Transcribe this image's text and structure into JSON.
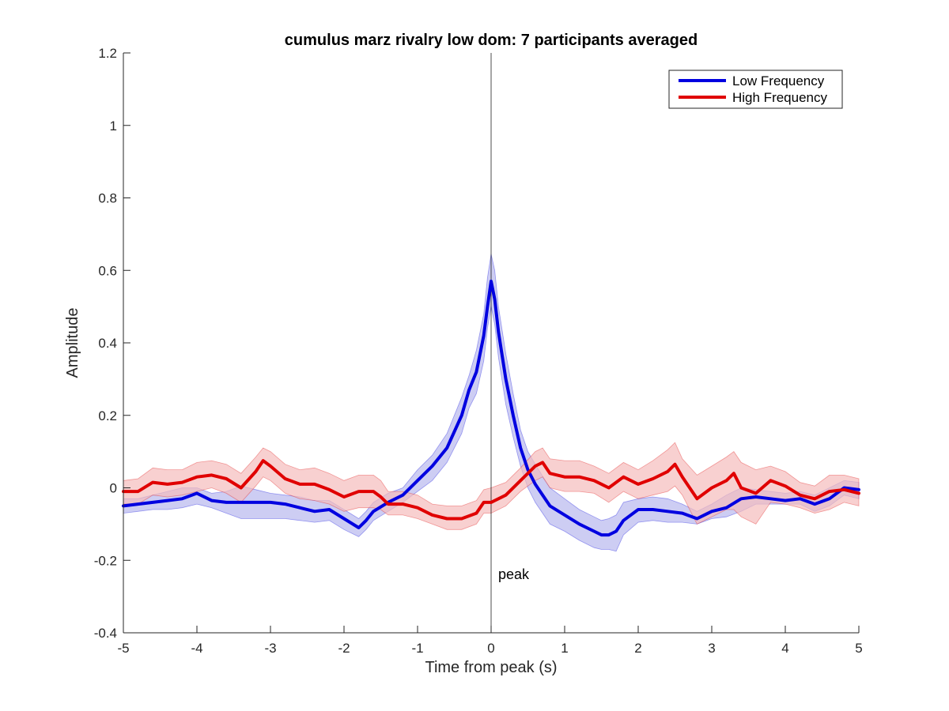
{
  "chart_data": {
    "type": "line",
    "title": "cumulus marz rivalry low dom: 7 participants averaged",
    "xlabel": "Time from peak (s)",
    "ylabel": "Amplitude",
    "xlim": [
      -5,
      5
    ],
    "ylim": [
      -0.4,
      1.2
    ],
    "xticks": [
      -5,
      -4,
      -3,
      -2,
      -1,
      0,
      1,
      2,
      3,
      4,
      5
    ],
    "yticks": [
      -0.4,
      -0.2,
      0,
      0.2,
      0.4,
      0.6,
      0.8,
      1,
      1.2
    ],
    "grid": false,
    "legend_position": "top-right",
    "vline": {
      "x": 0,
      "label": "peak"
    },
    "series": [
      {
        "name": "Low Frequency",
        "color": "#0000e0",
        "band_color": "#b8b8ee",
        "x": [
          -5,
          -4.8,
          -4.6,
          -4.4,
          -4.2,
          -4.0,
          -3.8,
          -3.6,
          -3.4,
          -3.2,
          -3.0,
          -2.8,
          -2.6,
          -2.4,
          -2.2,
          -2.0,
          -1.8,
          -1.7,
          -1.6,
          -1.4,
          -1.2,
          -1.0,
          -0.8,
          -0.6,
          -0.4,
          -0.3,
          -0.2,
          -0.1,
          -0.05,
          0,
          0.05,
          0.1,
          0.2,
          0.3,
          0.4,
          0.5,
          0.6,
          0.8,
          1.0,
          1.2,
          1.4,
          1.5,
          1.6,
          1.7,
          1.8,
          2.0,
          2.2,
          2.4,
          2.6,
          2.8,
          3.0,
          3.2,
          3.4,
          3.6,
          3.8,
          4.0,
          4.2,
          4.4,
          4.6,
          4.8,
          5.0
        ],
        "y": [
          -0.05,
          -0.045,
          -0.04,
          -0.035,
          -0.03,
          -0.015,
          -0.035,
          -0.04,
          -0.04,
          -0.04,
          -0.04,
          -0.045,
          -0.055,
          -0.065,
          -0.06,
          -0.085,
          -0.11,
          -0.09,
          -0.065,
          -0.04,
          -0.02,
          0.02,
          0.06,
          0.11,
          0.2,
          0.27,
          0.32,
          0.42,
          0.5,
          0.57,
          0.52,
          0.43,
          0.3,
          0.2,
          0.11,
          0.05,
          0.01,
          -0.05,
          -0.075,
          -0.1,
          -0.12,
          -0.13,
          -0.13,
          -0.12,
          -0.09,
          -0.06,
          -0.06,
          -0.065,
          -0.07,
          -0.085,
          -0.065,
          -0.055,
          -0.03,
          -0.025,
          -0.03,
          -0.035,
          -0.03,
          -0.045,
          -0.03,
          0,
          -0.005
        ],
        "lower": [
          -0.07,
          -0.065,
          -0.06,
          -0.06,
          -0.055,
          -0.045,
          -0.055,
          -0.07,
          -0.085,
          -0.085,
          -0.085,
          -0.085,
          -0.09,
          -0.095,
          -0.09,
          -0.115,
          -0.135,
          -0.115,
          -0.09,
          -0.065,
          -0.04,
          -0.01,
          0.02,
          0.07,
          0.15,
          0.22,
          0.26,
          0.35,
          0.44,
          0.5,
          0.45,
          0.36,
          0.23,
          0.14,
          0.06,
          0.0,
          -0.04,
          -0.1,
          -0.12,
          -0.145,
          -0.165,
          -0.17,
          -0.17,
          -0.175,
          -0.13,
          -0.095,
          -0.09,
          -0.095,
          -0.095,
          -0.1,
          -0.085,
          -0.08,
          -0.065,
          -0.045,
          -0.045,
          -0.045,
          -0.045,
          -0.065,
          -0.05,
          -0.02,
          -0.03
        ],
        "upper": [
          -0.03,
          -0.03,
          -0.02,
          -0.01,
          0.0,
          0.0,
          -0.015,
          -0.01,
          0.005,
          -0.005,
          -0.015,
          -0.02,
          -0.025,
          -0.035,
          -0.035,
          -0.06,
          -0.085,
          -0.065,
          -0.04,
          -0.015,
          0.0,
          0.05,
          0.09,
          0.15,
          0.25,
          0.31,
          0.38,
          0.48,
          0.58,
          0.645,
          0.6,
          0.5,
          0.37,
          0.26,
          0.16,
          0.1,
          0.065,
          0.0,
          -0.03,
          -0.06,
          -0.08,
          -0.09,
          -0.085,
          -0.075,
          -0.04,
          -0.03,
          -0.025,
          -0.03,
          -0.045,
          -0.065,
          -0.045,
          -0.02,
          0.0,
          -0.005,
          -0.01,
          -0.015,
          -0.01,
          -0.02,
          0.0,
          0.02,
          0.015
        ]
      },
      {
        "name": "High Frequency",
        "color": "#e00000",
        "band_color": "#f5bcbc",
        "x": [
          -5,
          -4.8,
          -4.6,
          -4.4,
          -4.2,
          -4.0,
          -3.8,
          -3.6,
          -3.4,
          -3.2,
          -3.1,
          -3.0,
          -2.8,
          -2.6,
          -2.4,
          -2.2,
          -2.0,
          -1.8,
          -1.6,
          -1.5,
          -1.4,
          -1.2,
          -1.0,
          -0.8,
          -0.6,
          -0.4,
          -0.2,
          -0.1,
          0,
          0.2,
          0.4,
          0.6,
          0.7,
          0.8,
          1.0,
          1.2,
          1.4,
          1.6,
          1.8,
          2.0,
          2.2,
          2.4,
          2.5,
          2.6,
          2.8,
          3.0,
          3.2,
          3.3,
          3.4,
          3.6,
          3.8,
          4.0,
          4.2,
          4.4,
          4.6,
          4.8,
          5.0
        ],
        "y": [
          -0.01,
          -0.01,
          0.015,
          0.01,
          0.015,
          0.03,
          0.035,
          0.025,
          0.0,
          0.045,
          0.075,
          0.06,
          0.025,
          0.01,
          0.01,
          -0.005,
          -0.025,
          -0.01,
          -0.01,
          -0.025,
          -0.045,
          -0.045,
          -0.055,
          -0.075,
          -0.085,
          -0.085,
          -0.07,
          -0.04,
          -0.04,
          -0.02,
          0.02,
          0.06,
          0.07,
          0.04,
          0.03,
          0.03,
          0.02,
          0.0,
          0.03,
          0.01,
          0.025,
          0.045,
          0.065,
          0.03,
          -0.03,
          0.0,
          0.02,
          0.04,
          0.0,
          -0.015,
          0.02,
          0.005,
          -0.02,
          -0.03,
          -0.01,
          -0.005,
          -0.015
        ],
        "lower": [
          -0.045,
          -0.045,
          -0.02,
          -0.025,
          -0.02,
          -0.01,
          0.0,
          -0.015,
          -0.04,
          0.005,
          0.03,
          0.02,
          -0.015,
          -0.03,
          -0.035,
          -0.045,
          -0.065,
          -0.055,
          -0.055,
          -0.06,
          -0.075,
          -0.075,
          -0.085,
          -0.1,
          -0.115,
          -0.115,
          -0.1,
          -0.07,
          -0.07,
          -0.05,
          -0.01,
          0.02,
          0.03,
          0.0,
          -0.01,
          -0.01,
          -0.015,
          -0.04,
          -0.01,
          -0.03,
          -0.02,
          -0.01,
          0.005,
          -0.02,
          -0.1,
          -0.08,
          -0.06,
          -0.06,
          -0.08,
          -0.1,
          -0.04,
          -0.045,
          -0.055,
          -0.07,
          -0.06,
          -0.04,
          -0.05
        ],
        "upper": [
          0.02,
          0.025,
          0.055,
          0.05,
          0.05,
          0.07,
          0.075,
          0.065,
          0.04,
          0.085,
          0.11,
          0.1,
          0.065,
          0.05,
          0.055,
          0.04,
          0.02,
          0.035,
          0.035,
          0.02,
          -0.01,
          -0.01,
          -0.02,
          -0.045,
          -0.05,
          -0.05,
          -0.035,
          -0.005,
          0.0,
          0.015,
          0.055,
          0.1,
          0.11,
          0.08,
          0.075,
          0.075,
          0.06,
          0.04,
          0.07,
          0.05,
          0.075,
          0.105,
          0.125,
          0.08,
          0.035,
          0.06,
          0.085,
          0.1,
          0.07,
          0.05,
          0.06,
          0.045,
          0.015,
          0.005,
          0.035,
          0.035,
          0.025
        ]
      }
    ]
  }
}
